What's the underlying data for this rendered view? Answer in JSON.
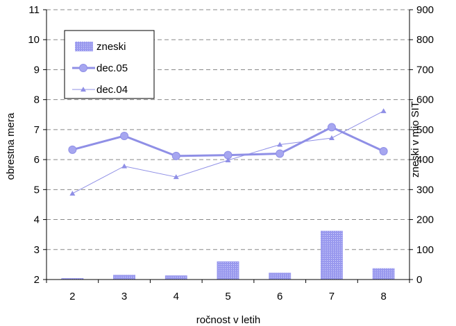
{
  "chart_data": {
    "type": "bar+line",
    "xlabel": "ročnost v letih",
    "ylabel_left": "obrestna mera",
    "ylabel_right": "zneski v mio SIT",
    "x": [
      2,
      3,
      4,
      5,
      6,
      7,
      8
    ],
    "ylim_left": [
      2,
      11
    ],
    "ylim_right": [
      0,
      900
    ],
    "yticks_left": [
      "2",
      "3",
      "4",
      "5",
      "6",
      "7",
      "8",
      "9",
      "10",
      "11"
    ],
    "yticks_right": [
      "0",
      "100",
      "200",
      "300",
      "400",
      "500",
      "600",
      "700",
      "800",
      "900"
    ],
    "grid": "horizontal dashed",
    "legend": {
      "placement": "top-left",
      "items": [
        "zneski",
        "dec.05",
        "dec.04"
      ]
    },
    "series": [
      {
        "name": "zneski",
        "type": "bar",
        "axis": "right",
        "color": "#9999ee",
        "values": [
          4,
          15,
          13,
          60,
          22,
          162,
          37
        ]
      },
      {
        "name": "dec.05",
        "type": "line",
        "axis": "left",
        "marker": "circle",
        "color": "#8f8fe6",
        "values": [
          6.33,
          6.79,
          6.12,
          6.15,
          6.2,
          7.08,
          6.28
        ]
      },
      {
        "name": "dec.04",
        "type": "line",
        "axis": "left",
        "marker": "triangle",
        "color": "#8f8fe6",
        "values": [
          4.87,
          5.78,
          5.42,
          5.98,
          6.5,
          6.72,
          7.62
        ]
      }
    ]
  }
}
